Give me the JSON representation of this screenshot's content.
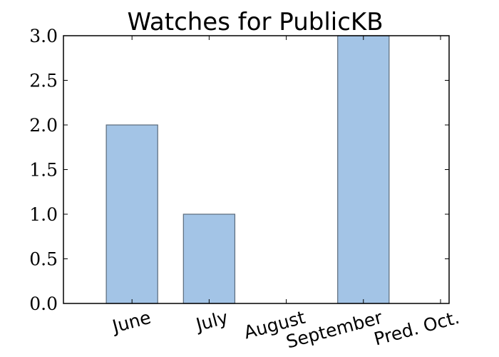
{
  "chart_data": {
    "type": "bar",
    "title": "Watches for PublicKB",
    "categories": [
      "June",
      "July",
      "August",
      "September",
      "Pred. Oct."
    ],
    "values": [
      2,
      1,
      0,
      3,
      0
    ],
    "ylim": [
      0,
      3
    ],
    "yticks": [
      "0.0",
      "0.5",
      "1.0",
      "1.5",
      "2.0",
      "2.5",
      "3.0"
    ],
    "xlabel": "",
    "ylabel": "",
    "grid": false,
    "bar_color": "#a3c4e6",
    "bar_edge_color": "#5a6a7a"
  }
}
